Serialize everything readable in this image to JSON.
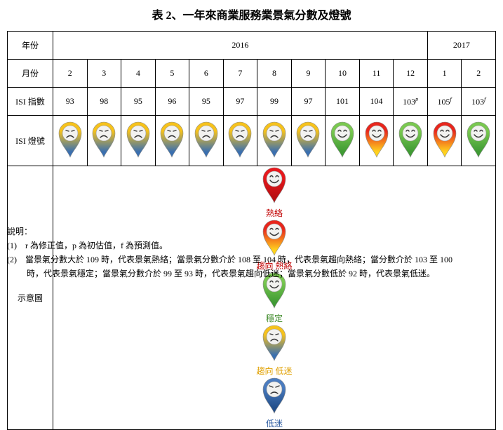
{
  "title": "表 2、一年來商業服務業景氣分數及燈號",
  "table": {
    "year_label": "年份",
    "years": [
      {
        "label": "2016",
        "span": 11
      },
      {
        "label": "2017",
        "span": 2
      }
    ],
    "month_label": "月份",
    "months": [
      "2",
      "3",
      "4",
      "5",
      "6",
      "7",
      "8",
      "9",
      "10",
      "11",
      "12",
      "1",
      "2"
    ],
    "index_label": "ISI 指數",
    "index": [
      93,
      98,
      95,
      96,
      95,
      97,
      99,
      97,
      101,
      104,
      103,
      105,
      103
    ],
    "index_notes": [
      null,
      null,
      null,
      null,
      null,
      null,
      null,
      null,
      null,
      null,
      "p",
      "f",
      "f"
    ],
    "light_label": "ISI 燈號",
    "lights": [
      "趨向\n低迷",
      "趨向\n低迷",
      "趨向\n低迷",
      "趨向\n低迷",
      "趨向\n低迷",
      "趨向\n低迷",
      "趨向\n低迷",
      "趨向\n低迷",
      "穩定",
      "趨向\n熱絡",
      "穩定",
      "趨向\n熱絡",
      "穩定"
    ],
    "legend_label": "示意圖",
    "legend": [
      {
        "label": "熱絡",
        "colors": [
          "#e8181c",
          "#b80f12"
        ],
        "face": "smile",
        "text_color": "#c00000"
      },
      {
        "label": "趨向\n熱絡",
        "colors": [
          "#e8261c",
          "#ffd21e"
        ],
        "face": "smile",
        "text_color": "#c00000"
      },
      {
        "label": "穩定",
        "colors": [
          "#79c850",
          "#3f9a34"
        ],
        "face": "smile",
        "text_color": "#3f8a2a"
      },
      {
        "label": "趨向\n低迷",
        "colors": [
          "#f6c21c",
          "#3a6fb0"
        ],
        "face": "frown",
        "text_color": "#e0a000"
      },
      {
        "label": "低迷",
        "colors": [
          "#4a7cc0",
          "#234f8a"
        ],
        "face": "angry",
        "text_color": "#2a5aa0"
      }
    ]
  },
  "notes": {
    "heading": "說明：",
    "items": [
      "(1)　r 為修正值，p 為初估值，f 為預測值。",
      "(2)　當景氣分數大於 109 時，代表景氣熱絡；當景氣分數介於 108 至 104 時，代表景氣趨向熱絡；當分數介於 103 至 100",
      "時，代表景氣穩定；當景氣分數介於 99 至 93 時，代表景氣趨向低迷；當景氣分數低於 92 時，代表景氣低迷。"
    ]
  }
}
